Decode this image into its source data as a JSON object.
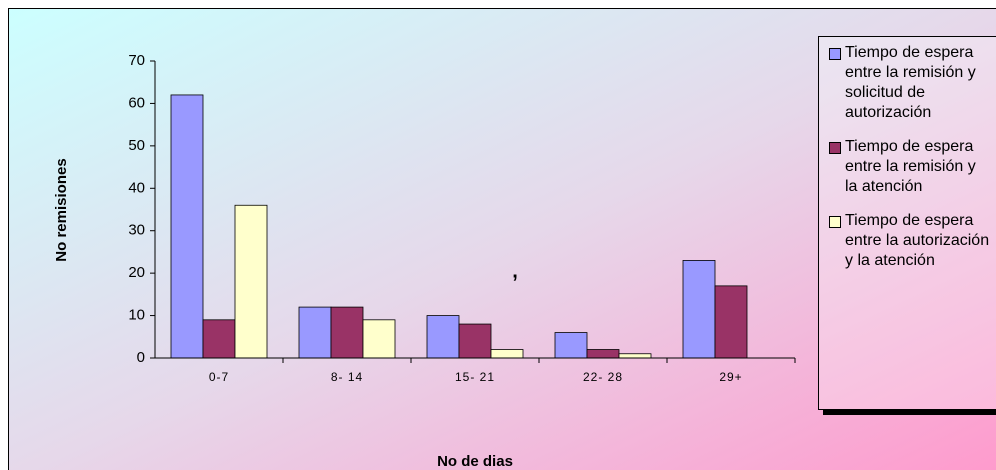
{
  "chart_data": {
    "type": "bar",
    "categories": [
      "0-7",
      "8- 14",
      "15- 21",
      "22- 28",
      "29+"
    ],
    "series": [
      {
        "name": "Tiempo de espera entre la remisión y solicitud de autorización",
        "color": "#9999ff",
        "values": [
          62,
          12,
          10,
          6,
          23
        ]
      },
      {
        "name": "Tiempo de espera entre la remisión y la atención",
        "color": "#993366",
        "values": [
          9,
          12,
          8,
          2,
          17
        ]
      },
      {
        "name": "Tiempo de espera entre la autorización y la atención",
        "color": "#ffffcc",
        "values": [
          36,
          9,
          2,
          1,
          0
        ]
      }
    ],
    "ylim": [
      0,
      70
    ],
    "yticks": [
      0,
      10,
      20,
      30,
      40,
      50,
      60,
      70
    ],
    "y_label": "No remisiones",
    "x_label": "No de dias",
    "annotation": ","
  }
}
